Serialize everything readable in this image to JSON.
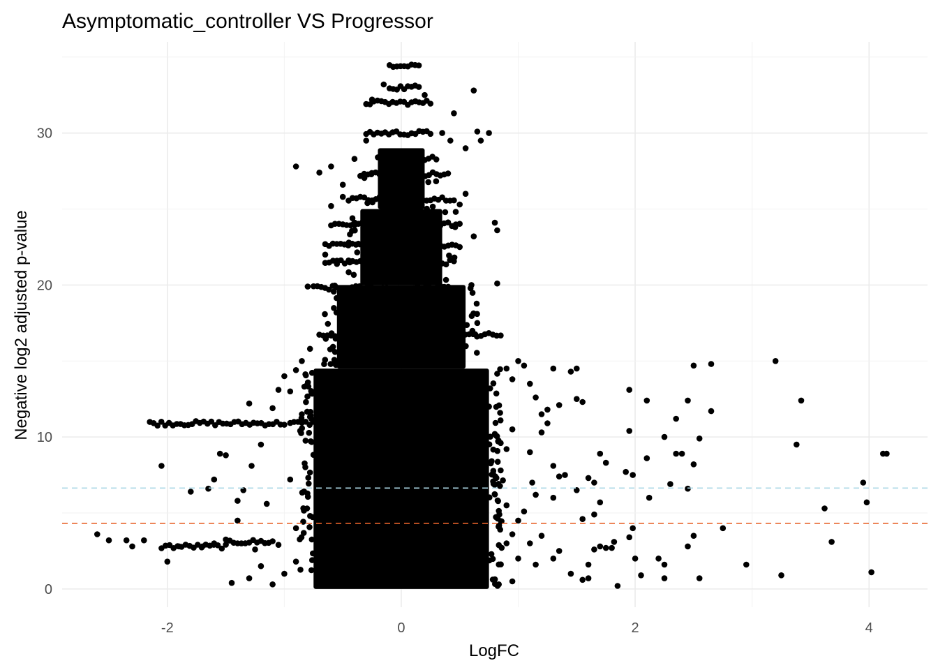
{
  "chart_data": {
    "type": "scatter",
    "title": "Asymptomatic_controller  VS  Progressor",
    "xlabel": "LogFC",
    "ylabel": "Negative log2 adjusted p-value",
    "xlim": [
      -2.9,
      4.5
    ],
    "ylim": [
      -1.2,
      36.0
    ],
    "x_ticks": [
      -2,
      0,
      2,
      4
    ],
    "y_ticks": [
      0,
      10,
      20,
      30
    ],
    "grid": true,
    "theme": "minimal",
    "point_color": "#000000",
    "threshold_lines": [
      {
        "y": 6.64,
        "color": "#add8e6",
        "style": "dashed"
      },
      {
        "y": 4.32,
        "color": "#e8632b",
        "style": "dashed"
      }
    ],
    "dense_core": [
      {
        "x0": -0.75,
        "x1": 0.75,
        "y0": 0.0,
        "y1": 14.5
      },
      {
        "x0": -0.55,
        "x1": 0.55,
        "y0": 14.5,
        "y1": 20.0
      },
      {
        "x0": -0.35,
        "x1": 0.35,
        "y0": 20.0,
        "y1": 25.0
      },
      {
        "x0": -0.2,
        "x1": 0.2,
        "y0": 25.0,
        "y1": 29.0
      }
    ],
    "bands": [
      {
        "x0": -2.15,
        "x1": -1.0,
        "y": 10.9
      },
      {
        "x0": -0.95,
        "x1": -0.75,
        "y": 10.9
      },
      {
        "x0": -2.05,
        "x1": -1.5,
        "y": 2.8
      },
      {
        "x0": -1.5,
        "x1": -1.1,
        "y": 3.1
      },
      {
        "x0": -0.7,
        "x1": 0.85,
        "y": 16.7
      },
      {
        "x0": -0.75,
        "x1": 0.5,
        "y": 19.8
      },
      {
        "x0": -0.65,
        "x1": 0.45,
        "y": 21.5
      },
      {
        "x0": -0.65,
        "x1": 0.5,
        "y": 22.6
      },
      {
        "x0": -0.6,
        "x1": 0.5,
        "y": 24.0
      },
      {
        "x0": -0.45,
        "x1": 0.45,
        "y": 25.7
      },
      {
        "x0": -0.35,
        "x1": 0.4,
        "y": 27.3
      },
      {
        "x0": -0.2,
        "x1": 0.3,
        "y": 28.3
      },
      {
        "x0": -0.3,
        "x1": 0.25,
        "y": 30.0
      },
      {
        "x0": -0.3,
        "x1": 0.25,
        "y": 32.0
      },
      {
        "x0": -0.1,
        "x1": 0.15,
        "y": 33.0
      },
      {
        "x0": -0.1,
        "x1": 0.15,
        "y": 34.5
      }
    ],
    "points": [
      {
        "x": -2.6,
        "y": 3.6
      },
      {
        "x": -2.5,
        "y": 3.2
      },
      {
        "x": -2.35,
        "y": 3.2
      },
      {
        "x": -2.3,
        "y": 2.8
      },
      {
        "x": -2.2,
        "y": 3.2
      },
      {
        "x": -2.05,
        "y": 8.1
      },
      {
        "x": -2.0,
        "y": 1.8
      },
      {
        "x": -1.8,
        "y": 6.4
      },
      {
        "x": -1.65,
        "y": 6.6
      },
      {
        "x": -1.6,
        "y": 7.2
      },
      {
        "x": -1.55,
        "y": 8.9
      },
      {
        "x": -1.5,
        "y": 8.8
      },
      {
        "x": -1.45,
        "y": 0.4
      },
      {
        "x": -1.4,
        "y": 5.8
      },
      {
        "x": -1.35,
        "y": 6.5
      },
      {
        "x": -1.3,
        "y": 12.2
      },
      {
        "x": -1.28,
        "y": 8.1
      },
      {
        "x": -1.2,
        "y": 9.5
      },
      {
        "x": -1.15,
        "y": 5.6
      },
      {
        "x": -1.1,
        "y": 11.9
      },
      {
        "x": -1.05,
        "y": 13.1
      },
      {
        "x": -1.0,
        "y": 14.0
      },
      {
        "x": -0.9,
        "y": 14.4
      },
      {
        "x": -0.85,
        "y": 15.0
      },
      {
        "x": -0.78,
        "y": 15.8
      },
      {
        "x": -0.7,
        "y": 12.5
      },
      {
        "x": -0.95,
        "y": 7.2
      },
      {
        "x": -0.9,
        "y": 4.0
      },
      {
        "x": -1.25,
        "y": 2.6
      },
      {
        "x": -1.05,
        "y": 2.9
      },
      {
        "x": -1.6,
        "y": 3.0
      },
      {
        "x": -1.7,
        "y": 2.8
      },
      {
        "x": -1.9,
        "y": 2.8
      },
      {
        "x": -1.3,
        "y": 0.7
      },
      {
        "x": -1.2,
        "y": 1.5
      },
      {
        "x": -1.1,
        "y": 0.3
      },
      {
        "x": -1.0,
        "y": 1.0
      },
      {
        "x": -0.9,
        "y": 1.8
      },
      {
        "x": -1.4,
        "y": 4.5
      },
      {
        "x": -0.85,
        "y": 11.5
      },
      {
        "x": -0.95,
        "y": 13.0
      },
      {
        "x": -0.8,
        "y": 19.9
      },
      {
        "x": -0.65,
        "y": 22.0
      },
      {
        "x": -0.6,
        "y": 25.2
      },
      {
        "x": -0.5,
        "y": 25.8
      },
      {
        "x": -0.55,
        "y": 21.6
      },
      {
        "x": 0.9,
        "y": 14.5
      },
      {
        "x": 0.95,
        "y": 13.8
      },
      {
        "x": 1.0,
        "y": 15.0
      },
      {
        "x": 1.05,
        "y": 14.7
      },
      {
        "x": 1.1,
        "y": 13.5
      },
      {
        "x": 1.15,
        "y": 12.6
      },
      {
        "x": 1.2,
        "y": 11.5
      },
      {
        "x": 1.25,
        "y": 10.9
      },
      {
        "x": 1.3,
        "y": 14.5
      },
      {
        "x": 1.45,
        "y": 14.3
      },
      {
        "x": 1.5,
        "y": 14.5
      },
      {
        "x": 1.55,
        "y": 12.3
      },
      {
        "x": 1.5,
        "y": 12.5
      },
      {
        "x": 1.35,
        "y": 12.1
      },
      {
        "x": 1.3,
        "y": 8.1
      },
      {
        "x": 1.4,
        "y": 7.5
      },
      {
        "x": 1.5,
        "y": 6.5
      },
      {
        "x": 1.3,
        "y": 6.0
      },
      {
        "x": 1.15,
        "y": 6.2
      },
      {
        "x": 1.05,
        "y": 5.1
      },
      {
        "x": 1.2,
        "y": 3.5
      },
      {
        "x": 1.3,
        "y": 2.0
      },
      {
        "x": 1.35,
        "y": 2.5
      },
      {
        "x": 1.45,
        "y": 1.0
      },
      {
        "x": 1.55,
        "y": 0.6
      },
      {
        "x": 1.6,
        "y": 0.7
      },
      {
        "x": 1.6,
        "y": 1.6
      },
      {
        "x": 1.65,
        "y": 2.6
      },
      {
        "x": 1.7,
        "y": 2.8
      },
      {
        "x": 1.75,
        "y": 2.7
      },
      {
        "x": 1.8,
        "y": 2.7
      },
      {
        "x": 1.55,
        "y": 4.6
      },
      {
        "x": 1.65,
        "y": 4.9
      },
      {
        "x": 1.6,
        "y": 7.3
      },
      {
        "x": 1.65,
        "y": 7.0
      },
      {
        "x": 1.7,
        "y": 5.7
      },
      {
        "x": 1.7,
        "y": 8.9
      },
      {
        "x": 1.75,
        "y": 8.3
      },
      {
        "x": 1.85,
        "y": 0.2
      },
      {
        "x": 1.82,
        "y": 3.1
      },
      {
        "x": 1.92,
        "y": 7.7
      },
      {
        "x": 1.98,
        "y": 7.5
      },
      {
        "x": 1.95,
        "y": 13.1
      },
      {
        "x": 1.95,
        "y": 10.4
      },
      {
        "x": 1.95,
        "y": 3.4
      },
      {
        "x": 1.98,
        "y": 4.0
      },
      {
        "x": 2.0,
        "y": 2.0
      },
      {
        "x": 2.05,
        "y": 0.9
      },
      {
        "x": 2.1,
        "y": 12.4
      },
      {
        "x": 2.1,
        "y": 8.6
      },
      {
        "x": 2.12,
        "y": 6.0
      },
      {
        "x": 2.2,
        "y": 2.0
      },
      {
        "x": 2.25,
        "y": 1.6
      },
      {
        "x": 2.25,
        "y": 10.0
      },
      {
        "x": 2.25,
        "y": 0.7
      },
      {
        "x": 2.3,
        "y": 6.9
      },
      {
        "x": 2.35,
        "y": 11.2
      },
      {
        "x": 2.35,
        "y": 8.9
      },
      {
        "x": 2.4,
        "y": 8.9
      },
      {
        "x": 2.45,
        "y": 6.6
      },
      {
        "x": 2.45,
        "y": 12.4
      },
      {
        "x": 2.45,
        "y": 2.8
      },
      {
        "x": 2.5,
        "y": 3.5
      },
      {
        "x": 2.5,
        "y": 8.2
      },
      {
        "x": 2.5,
        "y": 14.7
      },
      {
        "x": 2.55,
        "y": 9.9
      },
      {
        "x": 2.55,
        "y": 0.7
      },
      {
        "x": 2.65,
        "y": 14.8
      },
      {
        "x": 2.65,
        "y": 11.7
      },
      {
        "x": 2.75,
        "y": 4.0
      },
      {
        "x": 2.95,
        "y": 1.6
      },
      {
        "x": 3.2,
        "y": 15.0
      },
      {
        "x": 3.25,
        "y": 0.9
      },
      {
        "x": 3.38,
        "y": 9.5
      },
      {
        "x": 3.42,
        "y": 12.4
      },
      {
        "x": 3.62,
        "y": 5.3
      },
      {
        "x": 3.68,
        "y": 3.1
      },
      {
        "x": 3.95,
        "y": 7.0
      },
      {
        "x": 3.98,
        "y": 5.7
      },
      {
        "x": 4.02,
        "y": 1.1
      },
      {
        "x": 4.12,
        "y": 8.9
      },
      {
        "x": 4.15,
        "y": 8.9
      },
      {
        "x": 0.2,
        "y": 32.5
      },
      {
        "x": 0.35,
        "y": 30.0
      },
      {
        "x": 0.42,
        "y": 29.5
      },
      {
        "x": 0.45,
        "y": 31.3
      },
      {
        "x": 0.55,
        "y": 29.0
      },
      {
        "x": 0.62,
        "y": 32.8
      },
      {
        "x": 0.65,
        "y": 30.1
      },
      {
        "x": 0.75,
        "y": 30.0
      },
      {
        "x": 0.68,
        "y": 29.5
      },
      {
        "x": 0.8,
        "y": 24.1
      },
      {
        "x": 0.82,
        "y": 23.6
      },
      {
        "x": 0.82,
        "y": 20.1
      },
      {
        "x": 0.62,
        "y": 23.2
      },
      {
        "x": 0.55,
        "y": 26.0
      },
      {
        "x": 0.5,
        "y": 25.3
      },
      {
        "x": 0.6,
        "y": 20.0
      },
      {
        "x": 0.65,
        "y": 17.5
      },
      {
        "x": 0.7,
        "y": 13.5
      },
      {
        "x": 0.75,
        "y": 12.0
      },
      {
        "x": 0.8,
        "y": 10.2
      },
      {
        "x": 0.85,
        "y": 9.6
      },
      {
        "x": 0.9,
        "y": 9.2
      },
      {
        "x": 0.95,
        "y": 10.5
      },
      {
        "x": 0.85,
        "y": 7.8
      },
      {
        "x": 0.9,
        "y": 5.5
      },
      {
        "x": 0.95,
        "y": 3.6
      },
      {
        "x": 1.0,
        "y": 2.0
      },
      {
        "x": 0.95,
        "y": 0.5
      },
      {
        "x": 1.0,
        "y": 4.5
      },
      {
        "x": 0.9,
        "y": 3.0
      },
      {
        "x": 1.1,
        "y": 9.0
      },
      {
        "x": 1.12,
        "y": 7.0
      },
      {
        "x": 1.2,
        "y": 10.3
      },
      {
        "x": 1.25,
        "y": 11.8
      },
      {
        "x": 1.35,
        "y": 7.4
      },
      {
        "x": 1.15,
        "y": 1.6
      },
      {
        "x": 1.1,
        "y": 3.0
      },
      {
        "x": -0.15,
        "y": 33.2
      },
      {
        "x": -0.25,
        "y": 32.2
      },
      {
        "x": -0.3,
        "y": 29.5
      },
      {
        "x": -0.4,
        "y": 28.3
      },
      {
        "x": -0.6,
        "y": 27.8
      },
      {
        "x": -0.9,
        "y": 27.8
      },
      {
        "x": -0.7,
        "y": 27.4
      },
      {
        "x": -0.5,
        "y": 26.6
      }
    ]
  }
}
